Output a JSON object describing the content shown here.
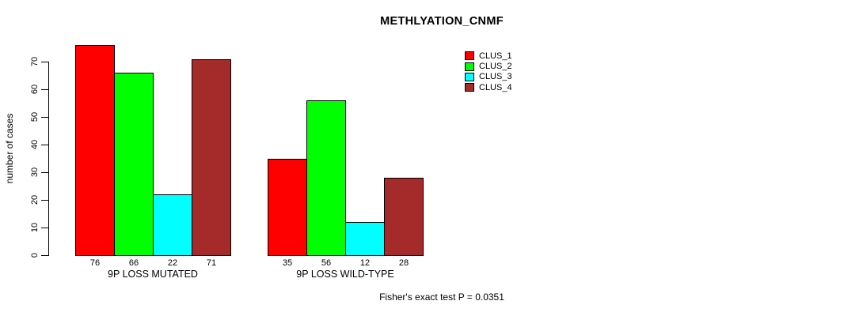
{
  "chart_data": {
    "type": "bar",
    "title": "METHLYATION_CNMF",
    "ylabel": "number of cases",
    "footer": "Fisher's exact test P = 0.0351",
    "ylim": [
      0,
      70
    ],
    "yticks": [
      0,
      10,
      20,
      30,
      40,
      50,
      60,
      70
    ],
    "grid": false,
    "legend_position": "top-right",
    "categories": [
      "9P LOSS MUTATED",
      "9P LOSS WILD-TYPE"
    ],
    "series": [
      {
        "name": "CLUS_1",
        "color": "#ff0000",
        "values": [
          76,
          35
        ]
      },
      {
        "name": "CLUS_2",
        "color": "#00ff00",
        "values": [
          66,
          56
        ]
      },
      {
        "name": "CLUS_3",
        "color": "#00ffff",
        "values": [
          22,
          12
        ]
      },
      {
        "name": "CLUS_4",
        "color": "#a52a2a",
        "values": [
          71,
          28
        ]
      }
    ]
  }
}
